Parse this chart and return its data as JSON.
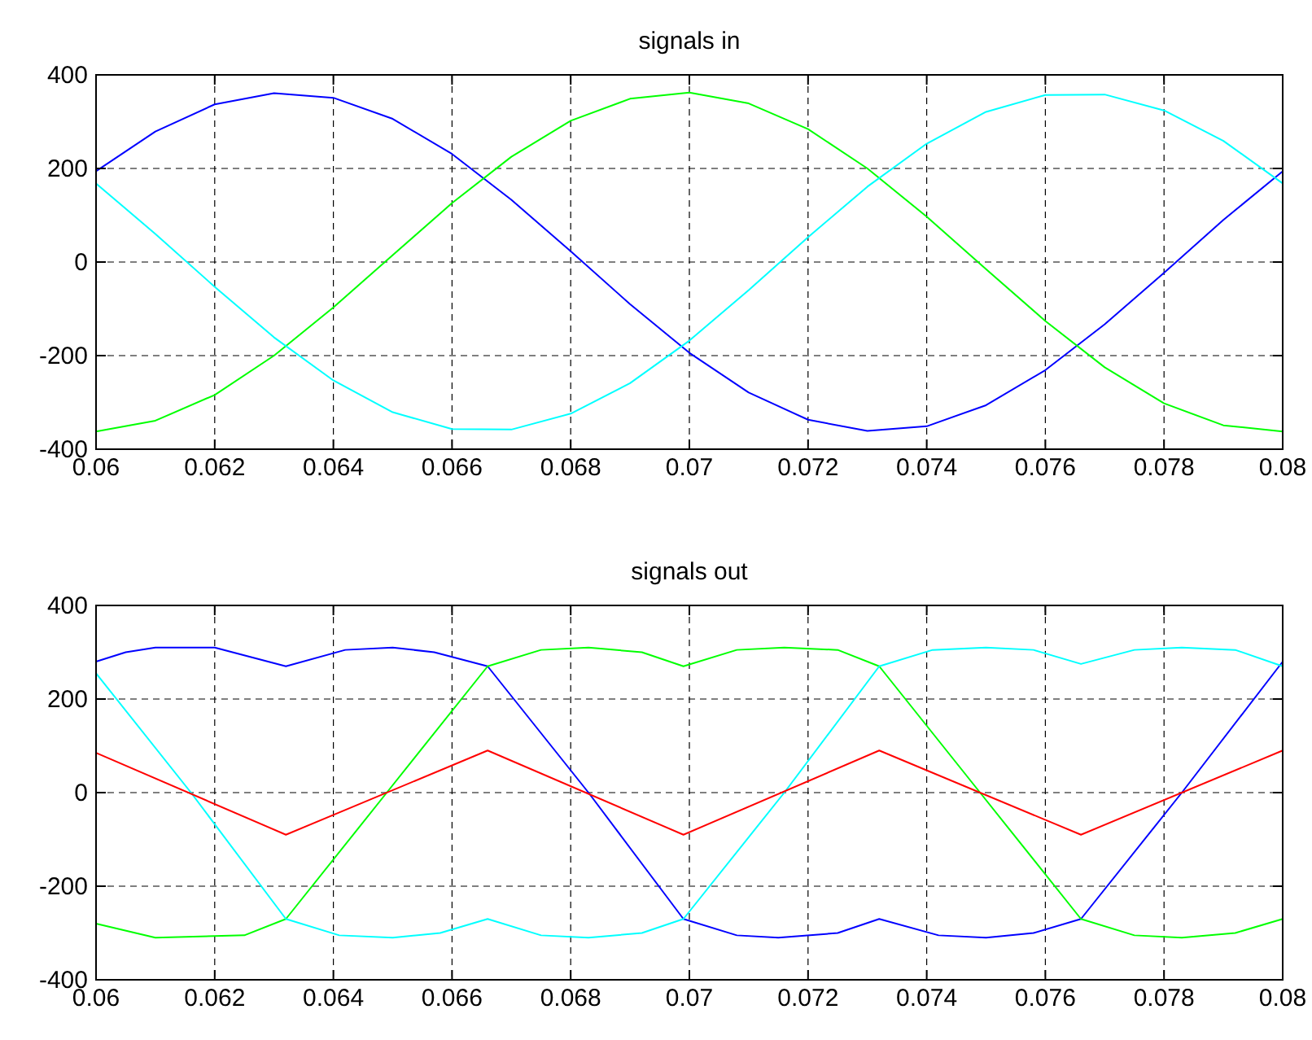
{
  "chart_data": [
    {
      "type": "line",
      "title": "signals in",
      "xlim": [
        0.06,
        0.08
      ],
      "xticks": [
        {
          "value": 0.06,
          "label": "0.06"
        },
        {
          "value": 0.062,
          "label": "0.062"
        },
        {
          "value": 0.064,
          "label": "0.064"
        },
        {
          "value": 0.066,
          "label": "0.066"
        },
        {
          "value": 0.068,
          "label": "0.068"
        },
        {
          "value": 0.07,
          "label": "0.07"
        },
        {
          "value": 0.072,
          "label": "0.072"
        },
        {
          "value": 0.074,
          "label": "0.074"
        },
        {
          "value": 0.076,
          "label": "0.076"
        },
        {
          "value": 0.078,
          "label": "0.078"
        },
        {
          "value": 0.08,
          "label": "0.08"
        }
      ],
      "ylim": [
        -400,
        400
      ],
      "yticks": [
        -400,
        -200,
        0,
        200,
        400
      ],
      "grid": true,
      "x": [
        0.06,
        0.061,
        0.062,
        0.063,
        0.064,
        0.065,
        0.066,
        0.067,
        0.068,
        0.069,
        0.07,
        0.071,
        0.072,
        0.073,
        0.074,
        0.075,
        0.076,
        0.077,
        0.078,
        0.079,
        0.08
      ],
      "series": [
        {
          "color": "#0000ff",
          "values": [
            194,
            279,
            337,
            361,
            351,
            306,
            231,
            133,
            23,
            -90,
            -194,
            -279,
            -337,
            -361,
            -351,
            -306,
            -231,
            -133,
            -23,
            90,
            194
          ]
        },
        {
          "color": "#00ff00",
          "values": [
            -362,
            -339,
            -284,
            -200,
            -97,
            15,
            126,
            225,
            302,
            349,
            362,
            339,
            284,
            200,
            97,
            -15,
            -126,
            -225,
            -302,
            -349,
            -362
          ]
        },
        {
          "color": "#00ffff",
          "values": [
            168,
            60,
            -53,
            -161,
            -253,
            -321,
            -357,
            -358,
            -324,
            -259,
            -168,
            -60,
            53,
            161,
            253,
            321,
            357,
            358,
            324,
            259,
            168
          ]
        }
      ]
    },
    {
      "type": "line",
      "title": "signals out",
      "xlim": [
        0.06,
        0.08
      ],
      "xticks": [
        {
          "value": 0.06,
          "label": "0.06"
        },
        {
          "value": 0.062,
          "label": "0.062"
        },
        {
          "value": 0.064,
          "label": "0.064"
        },
        {
          "value": 0.066,
          "label": "0.066"
        },
        {
          "value": 0.068,
          "label": "0.068"
        },
        {
          "value": 0.07,
          "label": "0.07"
        },
        {
          "value": 0.072,
          "label": "0.072"
        },
        {
          "value": 0.074,
          "label": "0.074"
        },
        {
          "value": 0.076,
          "label": "0.076"
        },
        {
          "value": 0.078,
          "label": "0.078"
        },
        {
          "value": 0.08,
          "label": "0.08"
        }
      ],
      "ylim": [
        -400,
        400
      ],
      "yticks": [
        -400,
        -200,
        0,
        200,
        400
      ],
      "grid": true,
      "series": [
        {
          "color": "#0000ff",
          "x": [
            0.06,
            0.0605,
            0.061,
            0.062,
            0.0632,
            0.0642,
            0.065,
            0.0657,
            0.0666,
            0.0683,
            0.0699,
            0.0708,
            0.0715,
            0.0725,
            0.0732,
            0.0742,
            0.075,
            0.0758,
            0.0766,
            0.0783,
            0.08
          ],
          "values": [
            280,
            300,
            310,
            310,
            270,
            305,
            310,
            300,
            270,
            0,
            -270,
            -305,
            -310,
            -300,
            -270,
            -305,
            -310,
            -300,
            -270,
            0,
            280
          ]
        },
        {
          "color": "#00ff00",
          "x": [
            0.06,
            0.061,
            0.0625,
            0.0632,
            0.0649,
            0.0666,
            0.0675,
            0.0683,
            0.0692,
            0.0699,
            0.0708,
            0.0716,
            0.0725,
            0.0732,
            0.0749,
            0.0766,
            0.0775,
            0.0783,
            0.0792,
            0.08
          ],
          "values": [
            -280,
            -310,
            -305,
            -270,
            0,
            270,
            305,
            310,
            300,
            270,
            305,
            310,
            305,
            270,
            0,
            -270,
            -305,
            -310,
            -300,
            -270
          ]
        },
        {
          "color": "#00ffff",
          "x": [
            0.06,
            0.0616,
            0.0632,
            0.0641,
            0.065,
            0.0658,
            0.0666,
            0.0675,
            0.0683,
            0.0692,
            0.0699,
            0.0716,
            0.0732,
            0.0741,
            0.075,
            0.0758,
            0.0766,
            0.0775,
            0.0783,
            0.0792,
            0.08
          ],
          "values": [
            255,
            0,
            -270,
            -305,
            -310,
            -300,
            -270,
            -305,
            -310,
            -300,
            -270,
            0,
            270,
            305,
            310,
            305,
            275,
            305,
            310,
            305,
            270
          ]
        },
        {
          "color": "#ff0000",
          "x": [
            0.06,
            0.0632,
            0.0666,
            0.0699,
            0.0732,
            0.0766,
            0.08
          ],
          "values": [
            85,
            -90,
            90,
            -90,
            90,
            -90,
            90
          ]
        }
      ]
    }
  ]
}
